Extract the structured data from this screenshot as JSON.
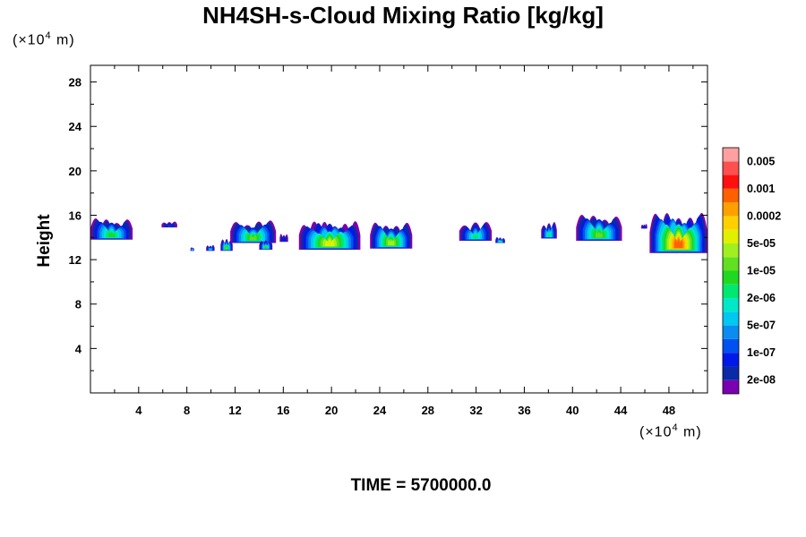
{
  "chart_data": {
    "type": "heatmap",
    "title": "NH4SH-s-Cloud Mixing Ratio [kg/kg]",
    "ylabel": "Height",
    "y_unit": {
      "prefix": "(×10",
      "exp": "4",
      "suffix": " m)"
    },
    "x_unit": {
      "prefix": "(×10",
      "exp": "4",
      "suffix": " m)"
    },
    "xlim": [
      0,
      51.2
    ],
    "ylim": [
      0,
      29.5
    ],
    "xticks": [
      4,
      8,
      12,
      16,
      20,
      24,
      28,
      32,
      36,
      40,
      44,
      48
    ],
    "yticks": [
      4,
      8,
      12,
      16,
      20,
      24,
      28
    ],
    "colorbar": {
      "colors": [
        "#7b00b0",
        "#0b2aa8",
        "#0018e8",
        "#0052f0",
        "#0a8cf0",
        "#00c8f0",
        "#00e8c8",
        "#00e870",
        "#20d820",
        "#60e020",
        "#a0f020",
        "#e0f000",
        "#ffd000",
        "#ffa000",
        "#ff6000",
        "#ff1010",
        "#ff5050",
        "#ffa0a0"
      ],
      "labels": [
        "2e-08",
        "1e-07",
        "5e-07",
        "2e-06",
        "1e-05",
        "5e-05",
        "0.0002",
        "0.001",
        "0.005"
      ]
    },
    "cloud_cells": [
      {
        "x0": 0.0,
        "x1": 3.5,
        "base": 13.8,
        "top": 15.6,
        "level": 8
      },
      {
        "x0": 5.9,
        "x1": 7.2,
        "base": 14.9,
        "top": 15.4,
        "level": 3
      },
      {
        "x0": 8.3,
        "x1": 8.6,
        "base": 12.8,
        "top": 13.1,
        "level": 7
      },
      {
        "x0": 9.6,
        "x1": 10.3,
        "base": 12.8,
        "top": 13.3,
        "level": 6
      },
      {
        "x0": 10.8,
        "x1": 11.8,
        "base": 12.8,
        "top": 13.8,
        "level": 9
      },
      {
        "x0": 11.6,
        "x1": 15.4,
        "base": 13.5,
        "top": 15.4,
        "level": 9
      },
      {
        "x0": 14.0,
        "x1": 15.1,
        "base": 12.9,
        "top": 13.7,
        "level": 8
      },
      {
        "x0": 15.7,
        "x1": 16.4,
        "base": 13.6,
        "top": 14.3,
        "level": 3
      },
      {
        "x0": 17.3,
        "x1": 22.4,
        "base": 12.9,
        "top": 15.3,
        "level": 11
      },
      {
        "x0": 23.2,
        "x1": 26.7,
        "base": 13.0,
        "top": 15.2,
        "level": 10
      },
      {
        "x0": 30.6,
        "x1": 33.3,
        "base": 13.7,
        "top": 15.3,
        "level": 7
      },
      {
        "x0": 33.6,
        "x1": 34.4,
        "base": 13.5,
        "top": 14.0,
        "level": 7
      },
      {
        "x0": 37.4,
        "x1": 38.7,
        "base": 13.9,
        "top": 15.3,
        "level": 7
      },
      {
        "x0": 40.3,
        "x1": 44.1,
        "base": 13.7,
        "top": 15.9,
        "level": 9
      },
      {
        "x0": 45.7,
        "x1": 46.2,
        "base": 14.8,
        "top": 15.2,
        "level": 3
      },
      {
        "x0": 46.4,
        "x1": 51.2,
        "base": 12.6,
        "top": 16.0,
        "level": 14
      }
    ]
  },
  "time_label": "TIME = 5700000.0"
}
